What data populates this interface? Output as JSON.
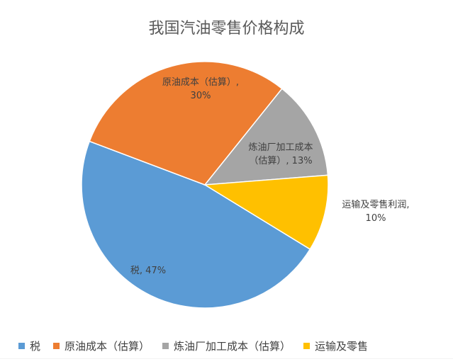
{
  "chart_data": {
    "type": "pie",
    "title": "我国汽油零售价格构成",
    "slices": [
      {
        "name": "税",
        "value": 47,
        "label_lines": [
          "税, 47%"
        ],
        "color": "#5B9BD5"
      },
      {
        "name": "原油成本（估算）",
        "value": 30,
        "label_lines": [
          "原油成本（估算）,",
          "30%"
        ],
        "color": "#ED7D31"
      },
      {
        "name": "炼油厂加工成本（估算）",
        "value": 13,
        "label_lines": [
          "炼油厂加工成本",
          "（估算）, 13%"
        ],
        "color": "#A5A5A5"
      },
      {
        "name": "运输及零售利润",
        "value": 10,
        "label_lines": [
          "运输及零售利润,",
          "10%"
        ],
        "color": "#FFC000"
      }
    ],
    "legend": {
      "placement": "bottom",
      "items": [
        "税",
        "原油成本（估算）",
        "炼油厂加工成本（估算）",
        "运输及零售"
      ]
    }
  }
}
